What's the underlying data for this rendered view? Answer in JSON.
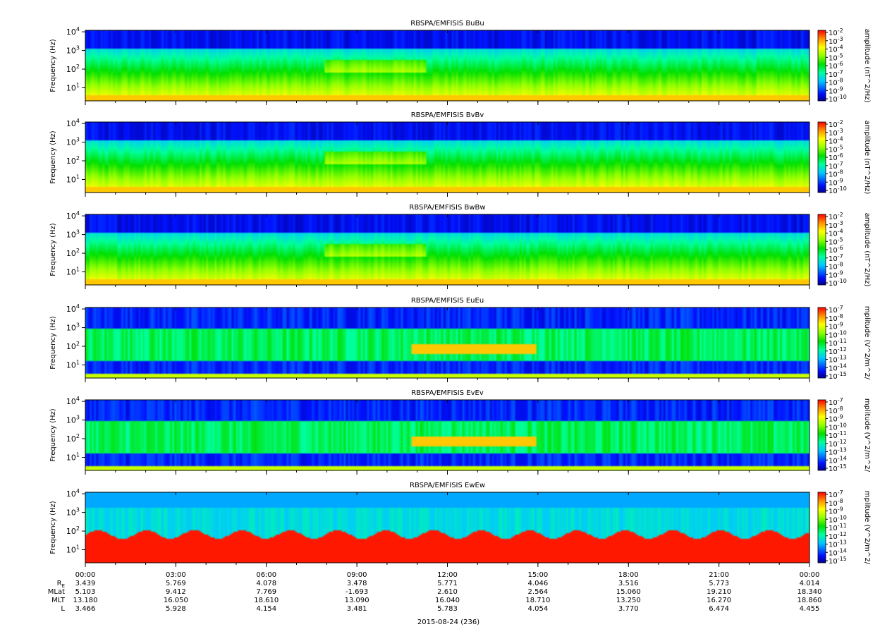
{
  "chart_data": {
    "type": "heatmap",
    "x_ticks": [
      "00:00",
      "03:00",
      "06:00",
      "09:00",
      "12:00",
      "15:00",
      "18:00",
      "21:00",
      "00:00"
    ],
    "xlabel": "2015-08-24 (236)",
    "panels": [
      {
        "title": "RBSPA/EMFISIS  BuBu",
        "ylabel": "Frequency (Hz)",
        "y_ticks": [
          "10^4",
          "10^3",
          "10^2",
          "10^1"
        ],
        "yscale": "log",
        "ylim": [
          2,
          12000
        ],
        "colorbar_label": "amplitude (nT^2/Hz)",
        "colorbar_ticks": [
          "-2",
          "-3",
          "-4",
          "-5",
          "-6",
          "-7",
          "-8",
          "-9",
          "-10"
        ],
        "kind": "B"
      },
      {
        "title": "RBSPA/EMFISIS  BvBv",
        "ylabel": "Frequency (Hz)",
        "y_ticks": [
          "10^4",
          "10^3",
          "10^2",
          "10^1"
        ],
        "yscale": "log",
        "ylim": [
          2,
          12000
        ],
        "colorbar_label": "amplitude (nT^2/Hz)",
        "colorbar_ticks": [
          "-2",
          "-3",
          "-4",
          "-5",
          "-6",
          "-7",
          "-8",
          "-9",
          "-10"
        ],
        "kind": "B"
      },
      {
        "title": "RBSPA/EMFISIS  BwBw",
        "ylabel": "Frequency (Hz)",
        "y_ticks": [
          "10^4",
          "10^3",
          "10^2",
          "10^1"
        ],
        "yscale": "log",
        "ylim": [
          2,
          12000
        ],
        "colorbar_label": "amplitude (nT^2/Hz)",
        "colorbar_ticks": [
          "-2",
          "-3",
          "-4",
          "-5",
          "-6",
          "-7",
          "-8",
          "-9",
          "-10"
        ],
        "kind": "B"
      },
      {
        "title": "RBSPA/EMFISIS  EuEu",
        "ylabel": "Frequency (Hz)",
        "y_ticks": [
          "10^4",
          "10^3",
          "10^2",
          "10^1"
        ],
        "yscale": "log",
        "ylim": [
          2,
          12000
        ],
        "colorbar_label": "mplitude (V^2/m^2/",
        "colorbar_ticks": [
          "-7",
          "-8",
          "-9",
          "-10",
          "-11",
          "-12",
          "-13",
          "-14",
          "-15"
        ],
        "kind": "E"
      },
      {
        "title": "RBSPA/EMFISIS  EvEv",
        "ylabel": "Frequency (Hz)",
        "y_ticks": [
          "10^4",
          "10^3",
          "10^2",
          "10^1"
        ],
        "yscale": "log",
        "ylim": [
          2,
          12000
        ],
        "colorbar_label": "mplitude (V^2/m^2/",
        "colorbar_ticks": [
          "-7",
          "-8",
          "-9",
          "-10",
          "-11",
          "-12",
          "-13",
          "-14",
          "-15"
        ],
        "kind": "E"
      },
      {
        "title": "RBSPA/EMFISIS  EwEw",
        "ylabel": "Frequency (Hz)",
        "y_ticks": [
          "10^4",
          "10^3",
          "10^2",
          "10^1"
        ],
        "yscale": "log",
        "ylim": [
          2,
          12000
        ],
        "colorbar_label": "mplitude (V^2/m^2/",
        "colorbar_ticks": [
          "-7",
          "-8",
          "-9",
          "-10",
          "-11",
          "-12",
          "-13",
          "-14",
          "-15"
        ],
        "kind": "Ew"
      }
    ],
    "ephemeris": [
      {
        "label": "R",
        "sub": "E",
        "values": [
          "3.439",
          "5.769",
          "4.078",
          "3.478",
          "5.771",
          "4.046",
          "3.516",
          "5.773",
          "4.014"
        ]
      },
      {
        "label": "MLat",
        "sub": "",
        "values": [
          "5.103",
          "9.412",
          "7.769",
          "-1.693",
          "2.610",
          "2.564",
          "15.060",
          "19.210",
          "18.340"
        ]
      },
      {
        "label": "MLT",
        "sub": "",
        "values": [
          "13.180",
          "16.050",
          "18.610",
          "13.090",
          "16.040",
          "18.710",
          "13.250",
          "16.270",
          "18.860"
        ]
      },
      {
        "label": "L",
        "sub": "",
        "values": [
          "3.466",
          "5.928",
          "4.154",
          "3.481",
          "5.783",
          "4.054",
          "3.770",
          "6.474",
          "4.455"
        ]
      }
    ]
  }
}
